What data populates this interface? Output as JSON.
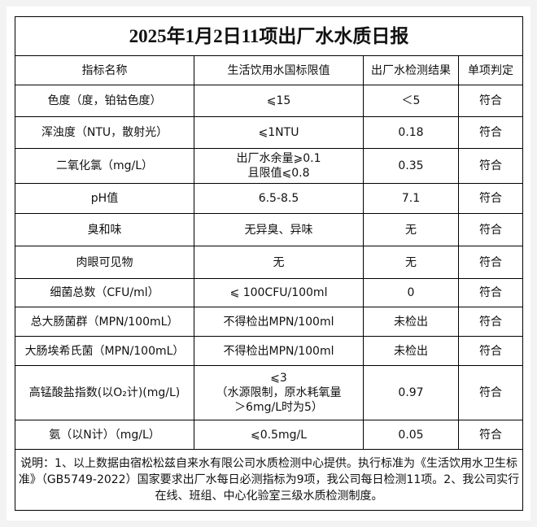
{
  "title": "2025年1月2日11项出厂水水质日报",
  "headers": [
    "指标名称",
    "生活饮用水国标限值",
    "出厂水检测结果",
    "单项判定"
  ],
  "rows": [
    {
      "name": "色度（度，铂钴色度）",
      "limit": "⩽15",
      "result": "＜5",
      "verdict": "符合"
    },
    {
      "name": "浑浊度（NTU，散射光）",
      "limit": "⩽1NTU",
      "result": "0.18",
      "verdict": "符合"
    },
    {
      "name": "二氧化氯（mg/L）",
      "limit": "出厂水余量⩾0.1\n且限值⩽0.8",
      "result": "0.35",
      "verdict": "符合"
    },
    {
      "name": "pH值",
      "limit": "6.5-8.5",
      "result": "7.1",
      "verdict": "符合"
    },
    {
      "name": "臭和味",
      "limit": "无异臭、异味",
      "result": "无",
      "verdict": "符合"
    },
    {
      "name": "肉眼可见物",
      "limit": "无",
      "result": "无",
      "verdict": "符合"
    },
    {
      "name": "细菌总数（CFU/ml）",
      "limit": "⩽ 100CFU/100ml",
      "result": "0",
      "verdict": "符合"
    },
    {
      "name": "总大肠菌群（MPN/100mL）",
      "limit": "不得检出MPN/100ml",
      "result": "未检出",
      "verdict": "符合"
    },
    {
      "name": "大肠埃希氏菌（MPN/100mL）",
      "limit": "不得检出MPN/100ml",
      "result": "未检出",
      "verdict": "符合"
    },
    {
      "name": "高锰酸盐指数(以O₂计)(mg/L)",
      "limit": "⩽3\n（水源限制，原水耗氧量\n＞6mg/L时为5）",
      "result": "0.97",
      "verdict": "符合"
    },
    {
      "name": "氨（以N计）（mg/L）",
      "limit": "⩽0.5mg/L",
      "result": "0.05",
      "verdict": "符合"
    }
  ],
  "note": "说明：1、以上数据由宿松松兹自来水有限公司水质检测中心提供。执行标准为《生活饮用水卫生标准》（GB5749-2022）国家要求出厂水每日必测指标为9项，我公司每日检测11项。2、我公司实行在线、班组、中心化验室三级水质检测制度。"
}
